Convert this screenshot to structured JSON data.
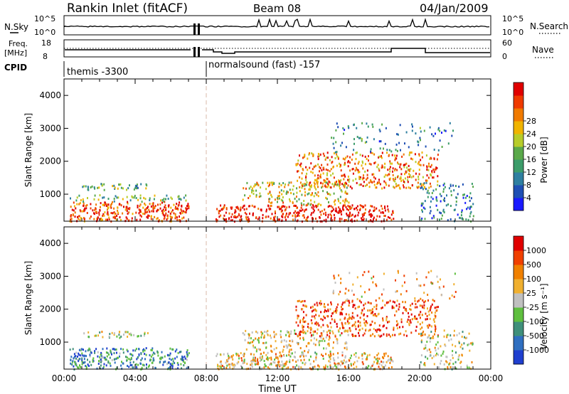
{
  "header": {
    "title": "Rankin Inlet (fitACF)",
    "beam": "Beam 08",
    "date": "04/Jan/2009"
  },
  "status_panels": {
    "nsky_label": "N.Sky",
    "nsky_ticks": [
      "10^5",
      "10^0"
    ],
    "nsearch_label": "N.Search",
    "nsearch_ticks": [
      "10^5",
      "10^0"
    ],
    "freq_label": "Freq.",
    "freq_unit": "[MHz]",
    "freq_ticks": [
      "18",
      "8"
    ],
    "nave_label": "Nave",
    "nave_ticks": [
      "60",
      "0"
    ],
    "cpid_label": "CPID",
    "cpid_segments": [
      "themis -3300",
      "normalsound (fast) -157"
    ]
  },
  "chart_data": [
    {
      "type": "heatmap",
      "name": "power-panel",
      "ylabel": "Slant Range [km]",
      "ylim": [
        180,
        4500
      ],
      "yticks": [
        "1000",
        "2000",
        "3000",
        "4000"
      ],
      "xlim_hours": [
        0,
        24
      ],
      "colorbar_label": "Power [dB]",
      "colorbar_ticks": [
        "4",
        "8",
        "12",
        "16",
        "20",
        "24",
        "28"
      ],
      "colorbar_colors": [
        "#1a1aff",
        "#1f4fb4",
        "#2e7fa0",
        "#3c9c6a",
        "#5aa94a",
        "#b7cc2a",
        "#f0b400",
        "#f07a00",
        "#ef3a00",
        "#e00000"
      ],
      "scatter_regions": [
        {
          "t0": 0.3,
          "t1": 7.0,
          "r0": 200,
          "r1": 800,
          "level": 0.85,
          "density": 0.9
        },
        {
          "t0": 0.3,
          "t1": 7.0,
          "r0": 800,
          "r1": 1000,
          "level": 0.45,
          "density": 0.5
        },
        {
          "t0": 1.0,
          "t1": 4.8,
          "r0": 1150,
          "r1": 1350,
          "level": 0.4,
          "density": 0.7
        },
        {
          "t0": 8.5,
          "t1": 18.5,
          "r0": 200,
          "r1": 700,
          "level": 0.95,
          "density": 0.9
        },
        {
          "t0": 10.0,
          "t1": 16.0,
          "r0": 700,
          "r1": 1400,
          "level": 0.6,
          "density": 0.55
        },
        {
          "t0": 13.0,
          "t1": 21.0,
          "r0": 1200,
          "r1": 2300,
          "level": 0.75,
          "density": 0.6
        },
        {
          "t0": 15.0,
          "t1": 22.0,
          "r0": 2300,
          "r1": 3200,
          "level": 0.3,
          "density": 0.18
        },
        {
          "t0": 20.0,
          "t1": 23.0,
          "r0": 200,
          "r1": 1400,
          "level": 0.25,
          "density": 0.4
        }
      ]
    },
    {
      "type": "heatmap",
      "name": "velocity-panel",
      "ylabel": "Slant Range [km]",
      "ylim": [
        180,
        4500
      ],
      "yticks": [
        "1000",
        "2000",
        "3000",
        "4000"
      ],
      "xlim_hours": [
        0,
        24
      ],
      "colorbar_label": "Velocity [m s⁻¹]",
      "colorbar_ticks": [
        "1000",
        "500",
        "100",
        "25",
        "-25",
        "-100",
        "-500",
        "-1000"
      ],
      "colorbar_colors": [
        "#1f3fcf",
        "#2f6fc0",
        "#3f8f7a",
        "#5fbf3f",
        "#c0c0c0",
        "#f0b030",
        "#f08000",
        "#f04000",
        "#e00000"
      ],
      "scatter_regions": [
        {
          "t0": 0.3,
          "t1": 7.0,
          "r0": 200,
          "r1": 850,
          "level": 0.25,
          "density": 0.85
        },
        {
          "t0": 1.0,
          "t1": 4.8,
          "r0": 1150,
          "r1": 1350,
          "level": 0.45,
          "density": 0.6
        },
        {
          "t0": 8.5,
          "t1": 18.5,
          "r0": 200,
          "r1": 700,
          "level": 0.6,
          "density": 0.85
        },
        {
          "t0": 10.0,
          "t1": 16.0,
          "r0": 700,
          "r1": 1400,
          "level": 0.55,
          "density": 0.5
        },
        {
          "t0": 13.0,
          "t1": 21.0,
          "r0": 1200,
          "r1": 2300,
          "level": 0.8,
          "density": 0.6
        },
        {
          "t0": 15.0,
          "t1": 22.0,
          "r0": 2300,
          "r1": 3200,
          "level": 0.65,
          "density": 0.15
        },
        {
          "t0": 20.0,
          "t1": 23.0,
          "r0": 200,
          "r1": 1400,
          "level": 0.5,
          "density": 0.4
        }
      ]
    }
  ],
  "x_axis": {
    "label": "Time UT",
    "ticks": [
      "00:00",
      "04:00",
      "08:00",
      "12:00",
      "16:00",
      "20:00",
      "00:00"
    ]
  }
}
